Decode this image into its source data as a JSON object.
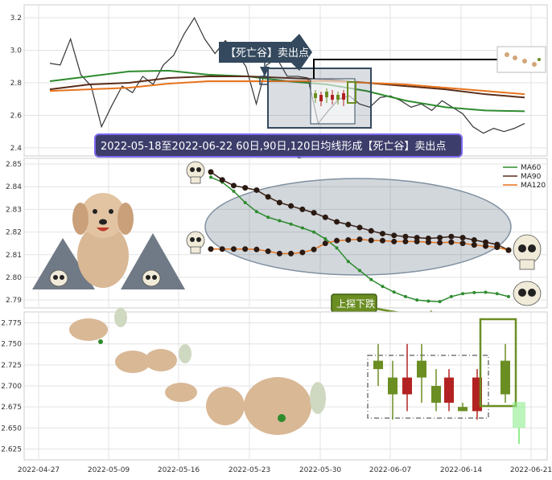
{
  "panel1": {
    "yticks": [
      "3.2",
      "3.0",
      "2.8",
      "2.6",
      "2.4"
    ],
    "ylim": [
      2.35,
      3.28
    ],
    "banner": "【死亡谷】卖出点",
    "callout": "2022-05-18至2022-06-22 60日,90日,120日均线形成【死亡谷】卖出点"
  },
  "panel2": {
    "yticks": [
      "2.85",
      "2.84",
      "2.83",
      "2.82",
      "2.81",
      "2.80",
      "2.79"
    ],
    "ylim": [
      2.7865,
      2.8525
    ],
    "legend": [
      "MA60",
      "MA90",
      "MA120"
    ]
  },
  "panel3": {
    "yticks": [
      "2.775",
      "2.750",
      "2.725",
      "2.700",
      "2.675",
      "2.650",
      "2.625"
    ],
    "ylim": [
      2.612,
      2.788
    ],
    "callout": "上探下跌"
  },
  "xticks": [
    "2022-04-27",
    "2022-05-09",
    "2022-05-16",
    "2022-05-23",
    "2022-05-30",
    "2022-06-07",
    "2022-06-14",
    "2022-06-21"
  ],
  "colors": {
    "ma60": "#2e8b2e",
    "ma90": "#5a2d1a",
    "ma120": "#e8731c",
    "price": "#333333",
    "banner": "#34495e",
    "callout": "#3d3d6b",
    "callout2": "#6b8e23"
  },
  "chart_data": [
    {
      "type": "line",
      "title": "",
      "ylim": [
        2.35,
        3.28
      ],
      "series": [
        {
          "name": "",
          "values": [
            2.92,
            2.91,
            3.07,
            2.85,
            2.78,
            2.53,
            2.66,
            2.78,
            2.74,
            2.84,
            2.79,
            2.91,
            2.97,
            3.1,
            3.2,
            3.07,
            2.98,
            3.06,
            2.99,
            2.9,
            2.67,
            2.91,
            2.95,
            2.84,
            2.84,
            2.83,
            2.55,
            2.63,
            2.7,
            2.72,
            2.67,
            2.65,
            2.71,
            2.72,
            2.69,
            2.65,
            2.67,
            2.63,
            2.69,
            2.65,
            2.61,
            2.53,
            2.49,
            2.52,
            2.5,
            2.52,
            2.55
          ]
        },
        {
          "name": "MA60",
          "values": [
            2.81,
            2.84,
            2.87,
            2.875,
            2.85,
            2.84,
            2.81,
            2.79,
            2.75,
            2.69,
            2.65,
            2.63,
            2.625
          ]
        },
        {
          "name": "MA90",
          "values": [
            2.76,
            2.79,
            2.8,
            2.83,
            2.84,
            2.84,
            2.83,
            2.82,
            2.8,
            2.78,
            2.76,
            2.73,
            2.71
          ]
        },
        {
          "name": "MA120",
          "values": [
            2.75,
            2.76,
            2.77,
            2.795,
            2.81,
            2.81,
            2.81,
            2.81,
            2.8,
            2.79,
            2.77,
            2.75,
            2.73
          ]
        }
      ]
    },
    {
      "type": "line",
      "title": "",
      "ylim": [
        2.7865,
        2.8525
      ],
      "series": [
        {
          "name": "MA60",
          "values": [
            2.8442,
            2.842,
            2.838,
            2.833,
            2.829,
            2.8265,
            2.825,
            2.8235,
            2.8218,
            2.82,
            2.817,
            2.813,
            2.807,
            2.803,
            2.799,
            2.796,
            2.7935,
            2.7915,
            2.79,
            2.7895,
            2.7893,
            2.7915,
            2.7928,
            2.7933,
            2.7934,
            2.7928,
            2.7915
          ]
        },
        {
          "name": "MA90",
          "values": [
            2.8465,
            2.843,
            2.8405,
            2.8395,
            2.8385,
            2.8355,
            2.833,
            2.8315,
            2.83,
            2.8285,
            2.8265,
            2.8245,
            2.8233,
            2.822,
            2.8205,
            2.8193,
            2.8185,
            2.818,
            2.8175,
            2.8172,
            2.8175,
            2.818,
            2.8175,
            2.8165,
            2.8155,
            2.8145,
            2.812
          ]
        },
        {
          "name": "MA120",
          "values": [
            2.8125,
            2.8125,
            2.8125,
            2.8125,
            2.8123,
            2.8115,
            2.8105,
            2.8105,
            2.811,
            2.8123,
            2.815,
            2.8162,
            2.8165,
            2.8168,
            2.8163,
            2.8162,
            2.8158,
            2.8158,
            2.8158,
            2.8155,
            2.8153,
            2.8155,
            2.815,
            2.8143,
            2.8138,
            2.8133,
            2.812
          ]
        }
      ]
    },
    {
      "type": "bar",
      "title": "",
      "ylim": [
        2.612,
        2.788
      ],
      "series": [
        {
          "name": "",
          "values": [
            {
              "open": 2.72,
              "close": 2.73,
              "high": 2.75,
              "low": 2.7
            },
            {
              "open": 2.69,
              "close": 2.71,
              "high": 2.73,
              "low": 2.66
            },
            {
              "open": 2.71,
              "close": 2.69,
              "high": 2.75,
              "low": 2.67
            },
            {
              "open": 2.71,
              "close": 2.73,
              "high": 2.75,
              "low": 2.68
            },
            {
              "open": 2.68,
              "close": 2.7,
              "high": 2.72,
              "low": 2.67
            },
            {
              "open": 2.71,
              "close": 2.68,
              "high": 2.72,
              "low": 2.67
            },
            {
              "open": 2.67,
              "close": 2.675,
              "high": 2.68,
              "low": 2.67
            },
            {
              "open": 2.71,
              "close": 2.67,
              "high": 2.72,
              "low": 2.66
            },
            {
              "open": 2.69,
              "close": 2.73,
              "high": 2.75,
              "low": 2.68
            }
          ]
        }
      ]
    }
  ]
}
